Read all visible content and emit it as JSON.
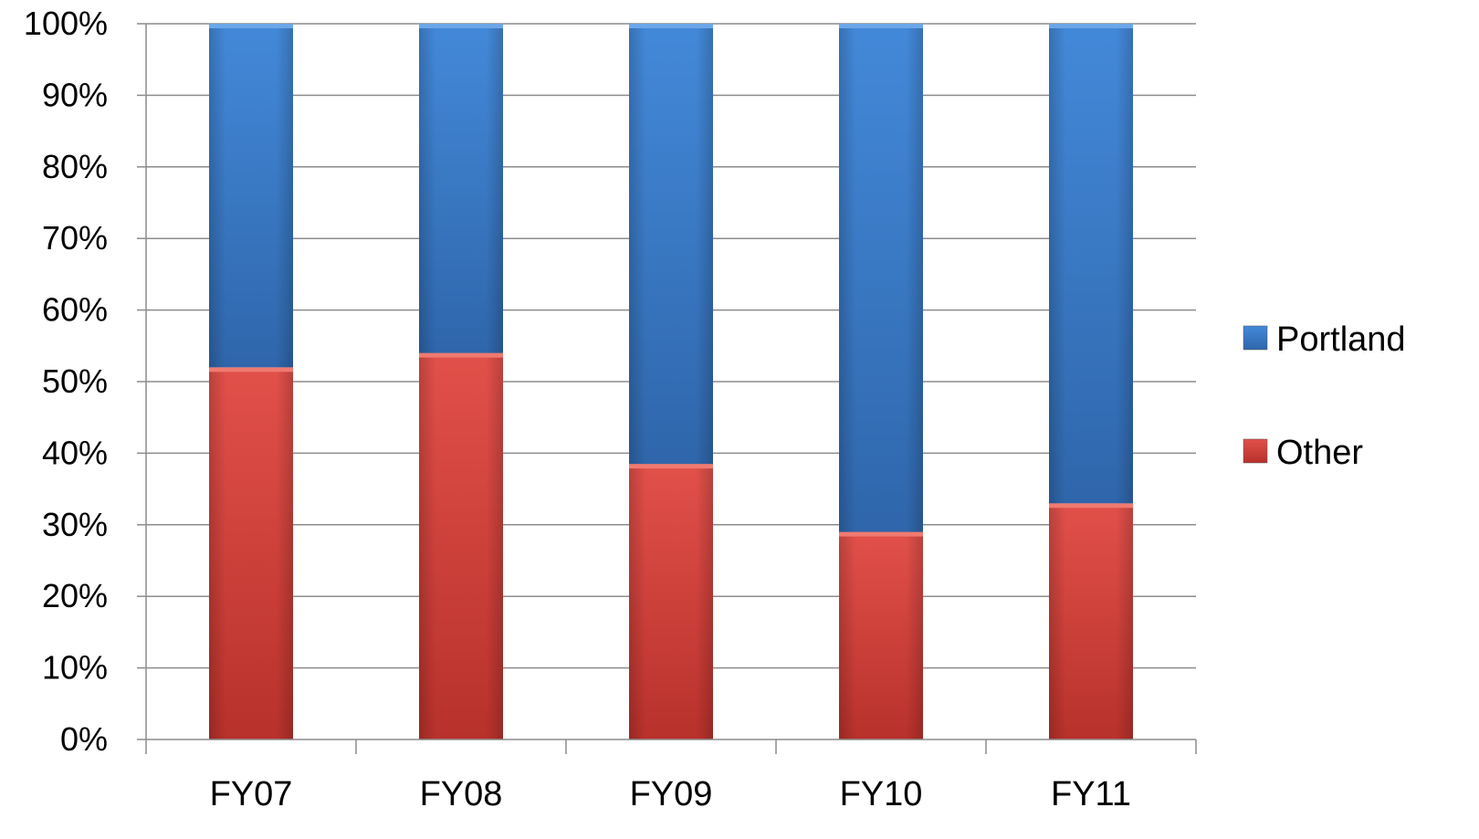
{
  "chart_data": {
    "type": "bar",
    "stacked": true,
    "percent_stacked": true,
    "categories": [
      "FY07",
      "FY08",
      "FY09",
      "FY10",
      "FY11"
    ],
    "series": [
      {
        "name": "Other",
        "values": [
          52,
          54,
          38.5,
          29,
          33
        ],
        "color": "#d9403a"
      },
      {
        "name": "Portland",
        "values": [
          48,
          46,
          61.5,
          71,
          67
        ],
        "color": "#3f7fd0"
      }
    ],
    "y_ticks": [
      "0%",
      "10%",
      "20%",
      "30%",
      "40%",
      "50%",
      "60%",
      "70%",
      "80%",
      "90%",
      "100%"
    ],
    "ylim": [
      0,
      100
    ],
    "grid": true,
    "legend_placement": "right",
    "legend_order": [
      "Portland",
      "Other"
    ]
  }
}
